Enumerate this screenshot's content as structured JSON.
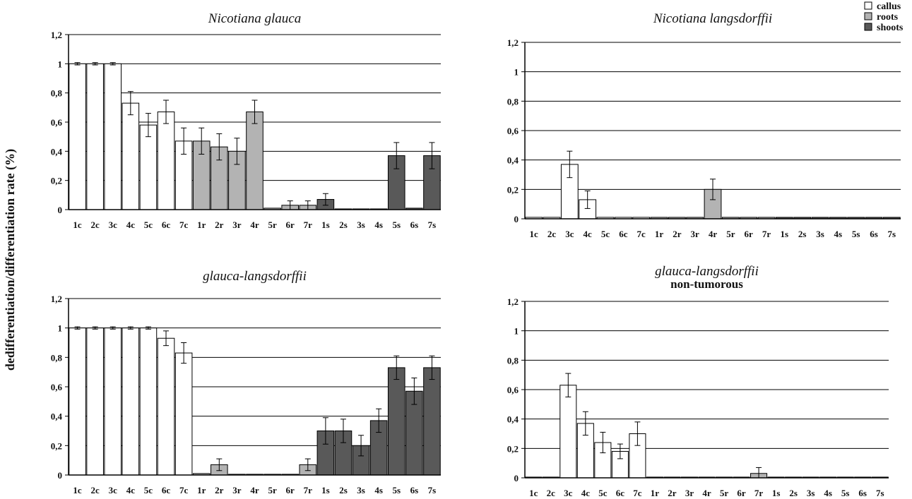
{
  "figure": {
    "ylabel": "dedifferentiation/differentiation rate (%)"
  },
  "legend": {
    "position": "top-right",
    "items": [
      {
        "label": "callus",
        "color": "#ffffff"
      },
      {
        "label": "roots",
        "color": "#b3b3b3"
      },
      {
        "label": "shoots",
        "color": "#595959"
      }
    ]
  },
  "chart_data": [
    {
      "type": "bar",
      "title": "Nicotiana glauca",
      "subtitle": "",
      "ylim": [
        0,
        1.2
      ],
      "yticks": [
        "0",
        "0,2",
        "0,4",
        "0,6",
        "0,8",
        "1",
        "1,2"
      ],
      "grid": true,
      "categories": [
        "1c",
        "2c",
        "3c",
        "4c",
        "5c",
        "6c",
        "7c",
        "1r",
        "2r",
        "3r",
        "4r",
        "5r",
        "6r",
        "7r",
        "1s",
        "2s",
        "3s",
        "4s",
        "5s",
        "6s",
        "7s"
      ],
      "groups": [
        "callus",
        "callus",
        "callus",
        "callus",
        "callus",
        "callus",
        "callus",
        "roots",
        "roots",
        "roots",
        "roots",
        "roots",
        "roots",
        "roots",
        "shoots",
        "shoots",
        "shoots",
        "shoots",
        "shoots",
        "shoots",
        "shoots"
      ],
      "values": [
        1,
        1,
        1,
        0.73,
        0.58,
        0.67,
        0.47,
        0.47,
        0.43,
        0.4,
        0.67,
        0.01,
        0.03,
        0.03,
        0.07,
        0.005,
        0.005,
        0.005,
        0.37,
        0.01,
        0.37
      ],
      "errors": [
        0.008,
        0.008,
        0.008,
        0.08,
        0.08,
        0.08,
        0.09,
        0.09,
        0.09,
        0.09,
        0.08,
        0,
        0.03,
        0.03,
        0.04,
        0,
        0,
        0,
        0.09,
        0,
        0.09
      ]
    },
    {
      "type": "bar",
      "title": "Nicotiana langsdorffii",
      "subtitle": "",
      "ylim": [
        0,
        1.2
      ],
      "yticks": [
        "0",
        "0,2",
        "0,4",
        "0,6",
        "0,8",
        "1",
        "1,2"
      ],
      "grid": true,
      "categories": [
        "1c",
        "2c",
        "3c",
        "4c",
        "5c",
        "6c",
        "7c",
        "1r",
        "2r",
        "3r",
        "4r",
        "5r",
        "6r",
        "7r",
        "1s",
        "2s",
        "3s",
        "4s",
        "5s",
        "6s",
        "7s"
      ],
      "groups": [
        "callus",
        "callus",
        "callus",
        "callus",
        "callus",
        "callus",
        "callus",
        "roots",
        "roots",
        "roots",
        "roots",
        "roots",
        "roots",
        "roots",
        "shoots",
        "shoots",
        "shoots",
        "shoots",
        "shoots",
        "shoots",
        "shoots"
      ],
      "values": [
        0.01,
        0.01,
        0.37,
        0.13,
        0.01,
        0.01,
        0.01,
        0.01,
        0.01,
        0.01,
        0.2,
        0.01,
        0.01,
        0.01,
        0.01,
        0.01,
        0.01,
        0.01,
        0.01,
        0.01,
        0.01
      ],
      "errors": [
        0,
        0,
        0.09,
        0.06,
        0,
        0,
        0,
        0,
        0,
        0,
        0.07,
        0,
        0,
        0,
        0,
        0,
        0,
        0,
        0,
        0,
        0
      ]
    },
    {
      "type": "bar",
      "title": "glauca-langsdorffii",
      "subtitle": "",
      "ylim": [
        0,
        1.2
      ],
      "yticks": [
        "0",
        "0,2",
        "0,4",
        "0,6",
        "0,8",
        "1",
        "1,2"
      ],
      "grid": true,
      "categories": [
        "1c",
        "2c",
        "3c",
        "4c",
        "5c",
        "6c",
        "7c",
        "1r",
        "2r",
        "3r",
        "4r",
        "5r",
        "6r",
        "7r",
        "1s",
        "2s",
        "3s",
        "4s",
        "5s",
        "6s",
        "7s"
      ],
      "groups": [
        "callus",
        "callus",
        "callus",
        "callus",
        "callus",
        "callus",
        "callus",
        "roots",
        "roots",
        "roots",
        "roots",
        "roots",
        "roots",
        "roots",
        "shoots",
        "shoots",
        "shoots",
        "shoots",
        "shoots",
        "shoots",
        "shoots"
      ],
      "values": [
        1,
        1,
        1,
        1,
        1,
        0.93,
        0.83,
        0.01,
        0.07,
        0.005,
        0.005,
        0.005,
        0.005,
        0.07,
        0.3,
        0.3,
        0.2,
        0.37,
        0.73,
        0.57,
        0.73
      ],
      "errors": [
        0.008,
        0.008,
        0.008,
        0.008,
        0.008,
        0.05,
        0.07,
        0,
        0.04,
        0,
        0,
        0,
        0,
        0.04,
        0.09,
        0.08,
        0.07,
        0.08,
        0.08,
        0.09,
        0.08
      ]
    },
    {
      "type": "bar",
      "title": "glauca-langsdorffii",
      "subtitle": "non-tumorous",
      "ylim": [
        0,
        1.2
      ],
      "yticks": [
        "0",
        "0,2",
        "0,4",
        "0,6",
        "0,8",
        "1",
        "1,2"
      ],
      "grid": true,
      "categories": [
        "1c",
        "2c",
        "3c",
        "4c",
        "5c",
        "6c",
        "7c",
        "1r",
        "2r",
        "3r",
        "4r",
        "5r",
        "6r",
        "7r",
        "1s",
        "2s",
        "3s",
        "4s",
        "5s",
        "6s",
        "7s"
      ],
      "groups": [
        "callus",
        "callus",
        "callus",
        "callus",
        "callus",
        "callus",
        "callus",
        "roots",
        "roots",
        "roots",
        "roots",
        "roots",
        "roots",
        "roots",
        "shoots",
        "shoots",
        "shoots",
        "shoots",
        "shoots",
        "shoots",
        "shoots"
      ],
      "values": [
        0.005,
        0.005,
        0.63,
        0.37,
        0.24,
        0.18,
        0.3,
        0.005,
        0.005,
        0.005,
        0.005,
        0.005,
        0.005,
        0.03,
        0.005,
        0.005,
        0.005,
        0.005,
        0.005,
        0.005,
        0.005
      ],
      "errors": [
        0,
        0,
        0.08,
        0.08,
        0.07,
        0.05,
        0.08,
        0,
        0,
        0,
        0,
        0,
        0,
        0.04,
        0,
        0,
        0,
        0,
        0,
        0,
        0
      ]
    }
  ]
}
